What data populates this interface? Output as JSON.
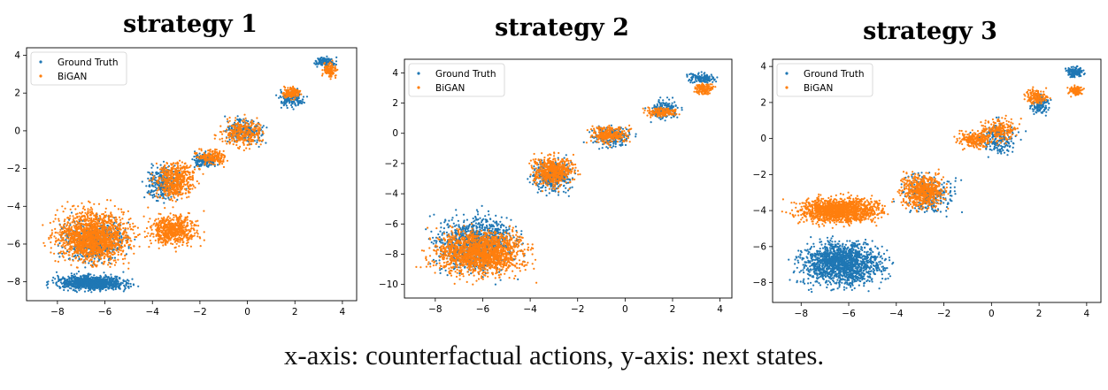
{
  "caption": "x-axis: counterfactual actions, y-axis: next states.",
  "colors": {
    "ground_truth": "#1f77b4",
    "bigan": "#ff7f0e"
  },
  "chart_data": [
    {
      "type": "scatter",
      "title": "strategy 1",
      "xlim": [
        -9.3,
        4.6
      ],
      "ylim": [
        -9.0,
        4.4
      ],
      "xticks": [
        -8,
        -6,
        -4,
        -2,
        0,
        2,
        4
      ],
      "yticks": [
        -8,
        -6,
        -4,
        -2,
        0,
        2,
        4
      ],
      "legend_position": "upper-left",
      "series": [
        {
          "name": "Ground Truth",
          "color": "#1f77b4",
          "clusters": [
            {
              "x": [
                -8.8,
                -4.3
              ],
              "y": [
                -8.6,
                -7.5
              ],
              "n": 900
            },
            {
              "x": [
                -8.5,
                -4.5
              ],
              "y": [
                -7.6,
                -4.2
              ],
              "n": 500
            },
            {
              "x": [
                -4.5,
                -2.5
              ],
              "y": [
                -4.0,
                -1.5
              ],
              "n": 300
            },
            {
              "x": [
                -2.6,
                -1.0
              ],
              "y": [
                -2.2,
                -1.0
              ],
              "n": 150
            },
            {
              "x": [
                -1.4,
                1.2
              ],
              "y": [
                -1.0,
                1.0
              ],
              "n": 220
            },
            {
              "x": [
                1.1,
                2.6
              ],
              "y": [
                1.0,
                2.4
              ],
              "n": 150
            },
            {
              "x": [
                2.6,
                4.0
              ],
              "y": [
                3.3,
                4.0
              ],
              "n": 120
            }
          ]
        },
        {
          "name": "BiGAN",
          "color": "#ff7f0e",
          "clusters": [
            {
              "x": [
                -8.8,
                -4.2
              ],
              "y": [
                -7.6,
                -3.6
              ],
              "n": 1600
            },
            {
              "x": [
                -4.6,
                -1.7
              ],
              "y": [
                -6.5,
                -4.0
              ],
              "n": 600
            },
            {
              "x": [
                -4.2,
                -1.8
              ],
              "y": [
                -4.0,
                -1.3
              ],
              "n": 500
            },
            {
              "x": [
                -2.4,
                -0.5
              ],
              "y": [
                -2.0,
                -0.8
              ],
              "n": 200
            },
            {
              "x": [
                -1.5,
                1.0
              ],
              "y": [
                -1.2,
                1.0
              ],
              "n": 300
            },
            {
              "x": [
                1.3,
                2.4
              ],
              "y": [
                1.6,
                2.4
              ],
              "n": 160
            },
            {
              "x": [
                3.0,
                3.9
              ],
              "y": [
                2.6,
                3.8
              ],
              "n": 120
            }
          ]
        }
      ]
    },
    {
      "type": "scatter",
      "title": "strategy 2",
      "xlim": [
        -9.3,
        4.5
      ],
      "ylim": [
        -10.9,
        4.9
      ],
      "xticks": [
        -8,
        -6,
        -4,
        -2,
        0,
        2,
        4
      ],
      "yticks": [
        -10,
        -8,
        -6,
        -4,
        -2,
        0,
        2,
        4
      ],
      "legend_position": "upper-left",
      "series": [
        {
          "name": "Ground Truth",
          "color": "#1f77b4",
          "clusters": [
            {
              "x": [
                -8.8,
                -3.9
              ],
              "y": [
                -10.0,
                -4.6
              ],
              "n": 1000
            },
            {
              "x": [
                -4.3,
                -1.8
              ],
              "y": [
                -4.4,
                -1.2
              ],
              "n": 350
            },
            {
              "x": [
                -1.8,
                0.6
              ],
              "y": [
                -1.2,
                0.8
              ],
              "n": 220
            },
            {
              "x": [
                0.8,
                2.5
              ],
              "y": [
                0.6,
                2.5
              ],
              "n": 170
            },
            {
              "x": [
                2.4,
                4.0
              ],
              "y": [
                3.2,
                4.1
              ],
              "n": 140
            }
          ]
        },
        {
          "name": "BiGAN",
          "color": "#ff7f0e",
          "clusters": [
            {
              "x": [
                -8.8,
                -3.4
              ],
              "y": [
                -10.0,
                -5.8
              ],
              "n": 1700
            },
            {
              "x": [
                -4.3,
                -1.7
              ],
              "y": [
                -4.0,
                -1.0
              ],
              "n": 550
            },
            {
              "x": [
                -2.0,
                0.6
              ],
              "y": [
                -0.9,
                0.7
              ],
              "n": 260
            },
            {
              "x": [
                0.5,
                2.5
              ],
              "y": [
                1.0,
                1.8
              ],
              "n": 160
            },
            {
              "x": [
                2.7,
                3.9
              ],
              "y": [
                2.4,
                3.5
              ],
              "n": 120
            }
          ]
        }
      ]
    },
    {
      "type": "scatter",
      "title": "strategy 3",
      "xlim": [
        -9.2,
        4.6
      ],
      "ylim": [
        -9.1,
        4.4
      ],
      "xticks": [
        -8,
        -6,
        -4,
        -2,
        0,
        2,
        4
      ],
      "yticks": [
        -8,
        -6,
        -4,
        -2,
        0,
        2,
        4
      ],
      "legend_position": "upper-left",
      "series": [
        {
          "name": "Ground Truth",
          "color": "#1f77b4",
          "clusters": [
            {
              "x": [
                -8.8,
                -3.8
              ],
              "y": [
                -8.7,
                -5.2
              ],
              "n": 1600
            },
            {
              "x": [
                -4.3,
                -1.0
              ],
              "y": [
                -4.6,
                -1.5
              ],
              "n": 300
            },
            {
              "x": [
                -1.0,
                1.5
              ],
              "y": [
                -1.2,
                1.2
              ],
              "n": 200
            },
            {
              "x": [
                1.5,
                2.6
              ],
              "y": [
                1.0,
                2.8
              ],
              "n": 140
            },
            {
              "x": [
                3.0,
                4.0
              ],
              "y": [
                3.3,
                4.1
              ],
              "n": 140
            }
          ]
        },
        {
          "name": "BiGAN",
          "color": "#ff7f0e",
          "clusters": [
            {
              "x": [
                -8.8,
                -4.0
              ],
              "y": [
                -5.0,
                -3.0
              ],
              "n": 1400
            },
            {
              "x": [
                -4.3,
                -1.5
              ],
              "y": [
                -4.3,
                -1.5
              ],
              "n": 600
            },
            {
              "x": [
                -1.8,
                0.5
              ],
              "y": [
                -0.7,
                0.6
              ],
              "n": 220
            },
            {
              "x": [
                -0.8,
                1.5
              ],
              "y": [
                -0.5,
                1.4
              ],
              "n": 200
            },
            {
              "x": [
                1.2,
                2.5
              ],
              "y": [
                1.7,
                2.9
              ],
              "n": 140
            },
            {
              "x": [
                3.1,
                4.0
              ],
              "y": [
                2.3,
                3.0
              ],
              "n": 120
            }
          ]
        }
      ]
    }
  ]
}
